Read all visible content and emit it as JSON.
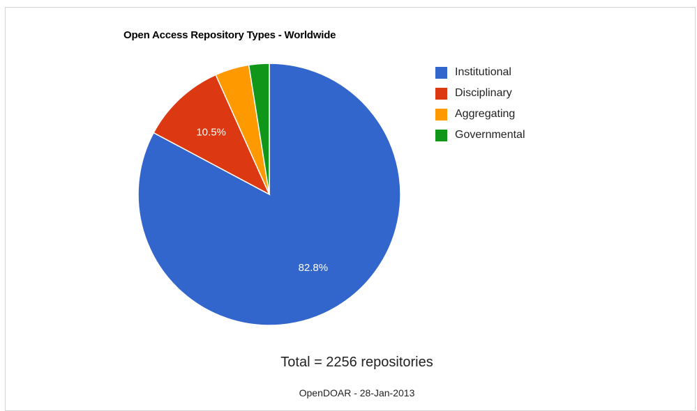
{
  "chart_data": {
    "type": "pie",
    "title": "Open Access Repository Types - Worldwide",
    "categories": [
      "Institutional",
      "Disciplinary",
      "Aggregating",
      "Governmental"
    ],
    "values": [
      82.8,
      10.5,
      4.2,
      2.5
    ],
    "data_labels": [
      "82.8%",
      "10.5%",
      "",
      ""
    ],
    "colors": [
      "#3366cc",
      "#dc3912",
      "#ff9900",
      "#109618"
    ],
    "legend_position": "right"
  },
  "footer": {
    "total": "Total = 2256 repositories",
    "source": "OpenDOAR - 28-Jan-2013"
  }
}
